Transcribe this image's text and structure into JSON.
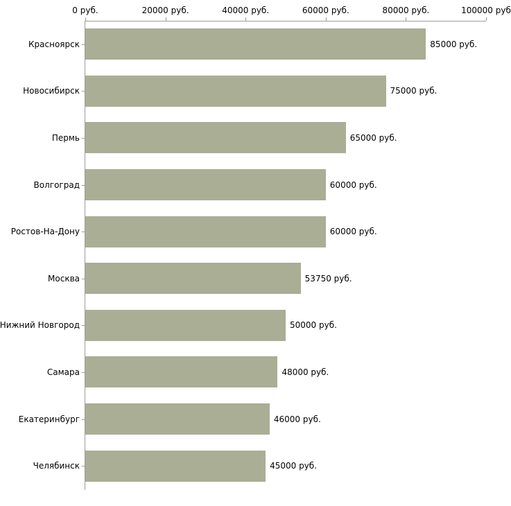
{
  "chart_data": {
    "type": "bar",
    "orientation": "horizontal",
    "categories": [
      "Красноярск",
      "Новосибирск",
      "Пермь",
      "Волгоград",
      "Ростов-На-Дону",
      "Москва",
      "Нижний Новгород",
      "Самара",
      "Екатеринбург",
      "Челябинск"
    ],
    "values": [
      85000,
      75000,
      65000,
      60000,
      60000,
      53750,
      50000,
      48000,
      46000,
      45000
    ],
    "value_labels": [
      "85000 руб.",
      "75000 руб.",
      "65000 руб.",
      "60000 руб.",
      "60000 руб.",
      "53750 руб.",
      "50000 руб.",
      "48000 руб.",
      "46000 руб.",
      "45000 руб."
    ],
    "x_ticks": [
      0,
      20000,
      40000,
      60000,
      80000,
      100000
    ],
    "x_tick_labels": [
      "0 руб.",
      "20000 руб.",
      "40000 руб.",
      "60000 руб.",
      "80000 руб.",
      "100000 руб"
    ],
    "xlim": [
      0,
      100000
    ],
    "xlabel": "",
    "ylabel": "",
    "legend": "none",
    "grid": false,
    "bar_color": "#a9ae95",
    "axis_color": "#9b9b9b",
    "background_color": "#ffffff"
  }
}
